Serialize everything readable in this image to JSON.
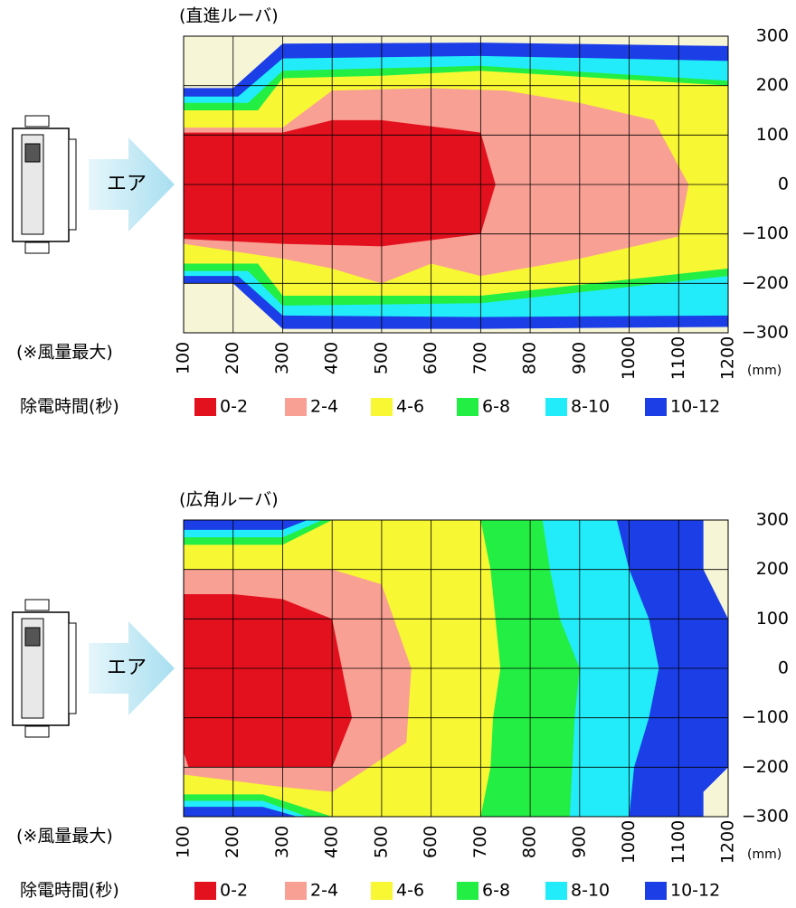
{
  "chart_data": [
    {
      "type": "contour",
      "title": "(直進ルーバ)",
      "annotations": [
        "エア",
        "(※風量最大)"
      ],
      "x_unit": "(mm)",
      "legend_title": "除電時間(秒)",
      "xlim": [
        100,
        1200
      ],
      "ylim": [
        -300,
        300
      ],
      "xticks": [
        100,
        200,
        300,
        400,
        500,
        600,
        700,
        800,
        900,
        1000,
        1100,
        1200
      ],
      "yticks": [
        300,
        200,
        100,
        0,
        {
          "value": -100,
          "label": "−100"
        },
        {
          "value": -200,
          "label": "−200"
        },
        {
          "value": -300,
          "label": "−300"
        }
      ],
      "grid": true,
      "background": "#f6f5d6",
      "series": [
        {
          "name": "10-12",
          "color": "#1c3ee6",
          "x": [
            100,
            200,
            300,
            700,
            1200,
            1200,
            700,
            300,
            200,
            100
          ],
          "y": [
            195,
            195,
            285,
            287,
            280,
            -288,
            -292,
            -292,
            -200,
            -200
          ]
        },
        {
          "name": "8-10",
          "color": "#22ecfa",
          "x": [
            100,
            210,
            300,
            700,
            1200,
            1200,
            700,
            300,
            210,
            100
          ],
          "y": [
            178,
            178,
            255,
            260,
            250,
            -265,
            -268,
            -265,
            -185,
            -185
          ]
        },
        {
          "name": "6-8",
          "color": "#22ee44",
          "x": [
            100,
            230,
            300,
            700,
            1200,
            1200,
            700,
            300,
            230,
            100
          ],
          "y": [
            165,
            165,
            230,
            240,
            210,
            -185,
            -240,
            -245,
            -175,
            -175
          ]
        },
        {
          "name": "4-6",
          "color": "#f7f733",
          "x": [
            100,
            250,
            300,
            500,
            700,
            1200,
            1200,
            700,
            300,
            250,
            100
          ],
          "y": [
            150,
            150,
            215,
            220,
            230,
            200,
            -170,
            -225,
            -225,
            -160,
            -160
          ]
        },
        {
          "name": "2-4",
          "color": "#f9a094",
          "x": [
            100,
            300,
            400,
            600,
            750,
            900,
            1050,
            1120,
            1100,
            900,
            700,
            600,
            500,
            400,
            300,
            100
          ],
          "y": [
            115,
            115,
            190,
            195,
            190,
            165,
            130,
            0,
            -105,
            -150,
            -185,
            -160,
            -200,
            -170,
            -150,
            -120
          ]
        },
        {
          "name": "0-2",
          "color": "#e3101e",
          "x": [
            100,
            300,
            400,
            500,
            700,
            730,
            700,
            500,
            300,
            100
          ],
          "y": [
            105,
            105,
            130,
            130,
            105,
            0,
            -100,
            -125,
            -120,
            -110
          ]
        }
      ]
    },
    {
      "type": "contour",
      "title": "(広角ルーバ)",
      "annotations": [
        "エア",
        "(※風量最大)"
      ],
      "x_unit": "(mm)",
      "legend_title": "除電時間(秒)",
      "xlim": [
        100,
        1200
      ],
      "ylim": [
        -300,
        300
      ],
      "xticks": [
        100,
        200,
        300,
        400,
        500,
        600,
        700,
        800,
        900,
        1000,
        1100,
        1200
      ],
      "yticks": [
        300,
        200,
        100,
        0,
        {
          "value": -100,
          "label": "−100"
        },
        {
          "value": -200,
          "label": "−200"
        },
        {
          "value": -300,
          "label": "−300"
        }
      ],
      "grid": true,
      "background": "#f6f5d6",
      "series": [
        {
          "name": "10-12",
          "color": "#1c3ee6",
          "x": [
            100,
            1150,
            1150,
            1200,
            1200,
            1150,
            1150,
            100
          ],
          "y": [
            300,
            300,
            200,
            100,
            -200,
            -250,
            -300,
            -300
          ]
        },
        {
          "name": "8-10",
          "color": "#22ecfa",
          "x": [
            100,
            300,
            350,
            975,
            1000,
            1040,
            1060,
            1040,
            1010,
            1000,
            330,
            260,
            100
          ],
          "y": [
            280,
            280,
            300,
            300,
            200,
            100,
            0,
            -100,
            -200,
            -300,
            -300,
            -280,
            -280
          ]
        },
        {
          "name": "6-8",
          "color": "#22ee44",
          "x": [
            100,
            300,
            380,
            825,
            840,
            860,
            900,
            890,
            885,
            880,
            350,
            260,
            100
          ],
          "y": [
            265,
            265,
            300,
            300,
            200,
            100,
            0,
            -100,
            -200,
            -300,
            -300,
            -268,
            -268
          ]
        },
        {
          "name": "4-6",
          "color": "#f7f733",
          "x": [
            100,
            300,
            400,
            700,
            720,
            730,
            740,
            725,
            720,
            700,
            400,
            260,
            100
          ],
          "y": [
            250,
            250,
            300,
            300,
            200,
            100,
            0,
            -100,
            -200,
            -300,
            -300,
            -255,
            -255
          ]
        },
        {
          "name": "2-4",
          "color": "#f9a094",
          "x": [
            100,
            400,
            500,
            560,
            550,
            400,
            300,
            100
          ],
          "y": [
            200,
            200,
            170,
            0,
            -150,
            -250,
            -240,
            -215
          ]
        },
        {
          "name": "0-2",
          "color": "#e3101e",
          "x": [
            100,
            200,
            300,
            400,
            440,
            400,
            110,
            100
          ],
          "y": [
            150,
            150,
            140,
            100,
            -100,
            -200,
            -200,
            -170
          ]
        }
      ]
    }
  ]
}
